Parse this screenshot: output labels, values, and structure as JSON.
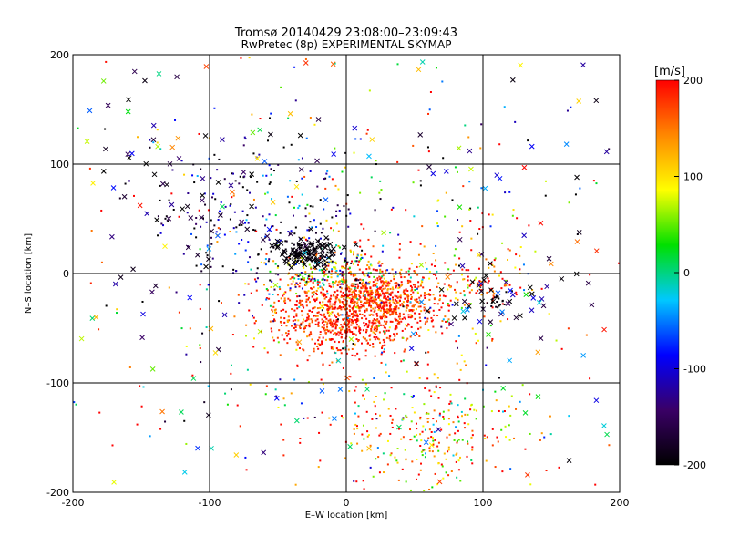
{
  "chart_data": {
    "type": "scatter",
    "title": "Tromsø 20140429 23:08:00–23:09:43",
    "subtitle": "RwPretec (8p) EXPERIMENTAL SKYMAP",
    "xlabel": "E–W location [km]",
    "ylabel": "N–S location [km]",
    "xlim": [
      -200,
      200
    ],
    "ylim": [
      -200,
      200
    ],
    "xticks": [
      -200,
      -100,
      0,
      100,
      200
    ],
    "yticks": [
      -200,
      -100,
      0,
      100,
      200
    ],
    "xtick_labels": [
      "-200",
      "-100",
      "0",
      "100",
      "200"
    ],
    "ytick_labels": [
      "-200",
      "-100",
      "0",
      "100",
      "200"
    ],
    "grid": true,
    "marker_types": [
      "dot",
      "cross"
    ],
    "colorbar": {
      "label": "[m/s]",
      "range": [
        -200,
        200
      ],
      "ticks": [
        200,
        100,
        0,
        -100,
        -200
      ],
      "tick_labels": [
        "200",
        "100",
        "0",
        "-100",
        "-200"
      ],
      "colors": [
        "#000000",
        "#3a0066",
        "#0000ff",
        "#00c8ff",
        "#00e000",
        "#ffff00",
        "#ff8800",
        "#ff0000"
      ]
    },
    "clusters": [
      {
        "x": 5,
        "y": -38,
        "sx": 28,
        "sy": 18,
        "n": 900,
        "v": 185,
        "sv": 30
      },
      {
        "x": 30,
        "y": -20,
        "sx": 22,
        "sy": 12,
        "n": 350,
        "v": 170,
        "sv": 40
      },
      {
        "x": -10,
        "y": 0,
        "sx": 25,
        "sy": 12,
        "n": 250,
        "v": 60,
        "sv": 110
      },
      {
        "x": -30,
        "y": 20,
        "sx": 10,
        "sy": 6,
        "n": 90,
        "v": -190,
        "sv": 10
      },
      {
        "x": 60,
        "y": -150,
        "sx": 40,
        "sy": 28,
        "n": 280,
        "v": 130,
        "sv": 80
      },
      {
        "x": -70,
        "y": 50,
        "sx": 40,
        "sy": 35,
        "n": 200,
        "v": -160,
        "sv": 60
      },
      {
        "x": 90,
        "y": -10,
        "sx": 25,
        "sy": 20,
        "n": 120,
        "v": 170,
        "sv": 60
      },
      {
        "x": 0,
        "y": 0,
        "sx": 110,
        "sy": 100,
        "n": 500,
        "v": 60,
        "sv": 160
      },
      {
        "x": 110,
        "y": -25,
        "sx": 5,
        "sy": 5,
        "n": 20,
        "v": -195,
        "sv": 5
      }
    ],
    "crosses_count": 320
  }
}
